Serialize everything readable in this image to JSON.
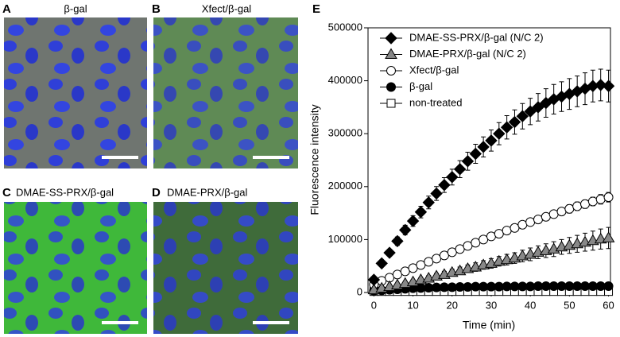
{
  "panels": [
    {
      "letter": "A",
      "title": "β-gal"
    },
    {
      "letter": "B",
      "title": "Xfect/β-gal"
    },
    {
      "letter": "C",
      "title": "DMAE-SS-PRX/β-gal"
    },
    {
      "letter": "D",
      "title": "DMAE-PRX/β-gal"
    }
  ],
  "chart_data": {
    "type": "scatter",
    "panel_letter": "E",
    "xlabel": "Time (min)",
    "ylabel": "Fluorescence intensity",
    "x": [
      0,
      2,
      4,
      6,
      8,
      10,
      12,
      14,
      16,
      18,
      20,
      22,
      24,
      26,
      28,
      30,
      32,
      34,
      36,
      38,
      40,
      42,
      44,
      46,
      48,
      50,
      52,
      54,
      56,
      58,
      60
    ],
    "xlim": [
      -1.5,
      60.5
    ],
    "xticks": [
      0,
      10,
      20,
      30,
      40,
      50,
      60
    ],
    "ylim": [
      0,
      500000
    ],
    "yticks": [
      0,
      100000,
      200000,
      300000,
      400000,
      500000
    ],
    "legend": "upper left",
    "series": [
      {
        "name": "DMAE-SS-PRX/β-gal (N/C 2)",
        "marker": "diamond",
        "color": "#000000",
        "values": [
          24000,
          55000,
          75000,
          97000,
          118000,
          135000,
          152000,
          170000,
          187000,
          203000,
          218000,
          233000,
          248000,
          262000,
          275000,
          287000,
          300000,
          312000,
          322000,
          333000,
          342000,
          350000,
          358000,
          365000,
          370000,
          375000,
          380000,
          385000,
          390000,
          392000,
          390000
        ],
        "errors": [
          3000,
          5000,
          6000,
          8000,
          9000,
          10000,
          11000,
          12000,
          13000,
          14000,
          15000,
          16000,
          17000,
          18000,
          19000,
          20000,
          21000,
          22000,
          23000,
          24000,
          25000,
          26000,
          27000,
          28000,
          28000,
          29000,
          29000,
          30000,
          30000,
          30000,
          30000
        ]
      },
      {
        "name": "DMAE-PRX/β-gal (N/C 2)",
        "marker": "triangle",
        "color": "#888888",
        "values": [
          5000,
          8000,
          11000,
          14000,
          17000,
          20000,
          24000,
          27000,
          31000,
          34000,
          38000,
          41000,
          45000,
          48000,
          52000,
          55000,
          59000,
          62000,
          65000,
          69000,
          72000,
          76000,
          79000,
          82000,
          86000,
          89000,
          92000,
          95000,
          98000,
          101000,
          103000
        ],
        "errors": [
          1000,
          2000,
          2000,
          3000,
          3000,
          4000,
          4000,
          5000,
          5000,
          6000,
          6000,
          7000,
          7000,
          8000,
          8000,
          9000,
          9000,
          10000,
          10000,
          11000,
          12000,
          12000,
          13000,
          14000,
          14000,
          15000,
          16000,
          17000,
          18000,
          19000,
          20000
        ]
      },
      {
        "name": "Xfect/β-gal",
        "marker": "circle",
        "color": "#ffffff",
        "values": [
          15000,
          22000,
          28000,
          34000,
          40000,
          46000,
          52000,
          58000,
          64000,
          70000,
          76000,
          82000,
          88000,
          94000,
          100000,
          106000,
          111000,
          117000,
          122000,
          128000,
          133000,
          138000,
          143000,
          148000,
          153000,
          158000,
          163000,
          167000,
          172000,
          176000,
          180000
        ],
        "errors": [
          1000,
          1000,
          2000,
          2000,
          2000,
          3000,
          3000,
          3000,
          3000,
          4000,
          4000,
          4000,
          4000,
          5000,
          5000,
          5000,
          5000,
          6000,
          6000,
          6000,
          6000,
          7000,
          7000,
          7000,
          7000,
          8000,
          8000,
          8000,
          8000,
          9000,
          9000
        ]
      },
      {
        "name": "β-gal",
        "marker": "circle",
        "color": "#000000",
        "values": [
          3000,
          4000,
          5000,
          6000,
          7000,
          8000,
          8500,
          9000,
          9500,
          10000,
          10000,
          10500,
          10500,
          11000,
          11000,
          11000,
          11000,
          11500,
          11500,
          11500,
          11500,
          12000,
          12000,
          12000,
          12000,
          12000,
          12000,
          12000,
          12000,
          12000,
          12000
        ]
      },
      {
        "name": "non-treated",
        "marker": "square",
        "color": "#ffffff",
        "values": [
          2000,
          2000,
          2000,
          2000,
          2000,
          2000,
          2000,
          2000,
          2000,
          2000,
          2000,
          2000,
          2000,
          2000,
          2000,
          2000,
          2000,
          2000,
          2000,
          2000,
          2000,
          2000,
          2000,
          2000,
          2000,
          2000,
          2000,
          2000,
          2000,
          2000,
          2000
        ]
      }
    ]
  }
}
